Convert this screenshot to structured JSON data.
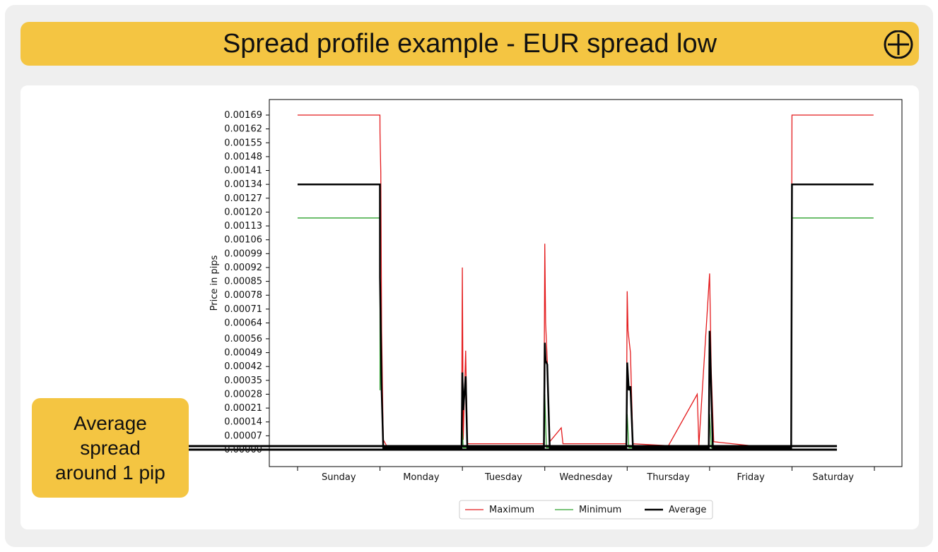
{
  "header": {
    "title": "Spread profile example - EUR spread low",
    "expand_icon": "circle-plus-icon"
  },
  "callout": {
    "text": "Average\nspread\naround 1 pip"
  },
  "colors": {
    "accent": "#f4c542",
    "maximum": "#e41a1c",
    "minimum": "#2ca02c",
    "average": "#000000"
  },
  "chart_data": {
    "type": "line",
    "ylabel": "Price in pips",
    "xlabel": "",
    "categories": [
      "Sunday",
      "Monday",
      "Tuesday",
      "Wednesday",
      "Thursday",
      "Friday",
      "Saturday"
    ],
    "yticks": [
      "0.00000",
      "0.00007",
      "0.00014",
      "0.00021",
      "0.00028",
      "0.00035",
      "0.00042",
      "0.00049",
      "0.00056",
      "0.00064",
      "0.00071",
      "0.00078",
      "0.00085",
      "0.00092",
      "0.00099",
      "0.00106",
      "0.00113",
      "0.00120",
      "0.00127",
      "0.00134",
      "0.00141",
      "0.00148",
      "0.00155",
      "0.00162",
      "0.00169"
    ],
    "ylim": [
      -1e-05,
      0.00177
    ],
    "xlim": [
      -0.35,
      7.0
    ],
    "legend": {
      "position": "bottom-center",
      "entries": [
        "Maximum",
        "Minimum",
        "Average"
      ]
    },
    "grid": false,
    "series": [
      {
        "name": "Maximum",
        "color": "#e41a1c",
        "points": [
          [
            0.0,
            0.00169
          ],
          [
            0.999,
            0.00169
          ],
          [
            1.0,
            0.0016
          ],
          [
            1.01,
            0.0014
          ],
          [
            1.02,
            0.0006
          ],
          [
            1.04,
            5e-05
          ],
          [
            1.08,
            2e-05
          ],
          [
            1.5,
            2e-05
          ],
          [
            1.99,
            2e-05
          ],
          [
            2.0,
            0.00092
          ],
          [
            2.01,
            5e-05
          ],
          [
            2.04,
            0.0005
          ],
          [
            2.06,
            3e-05
          ],
          [
            2.5,
            3e-05
          ],
          [
            2.99,
            3e-05
          ],
          [
            3.0,
            0.00104
          ],
          [
            3.01,
            0.00064
          ],
          [
            3.03,
            0.00045
          ],
          [
            3.06,
            4e-05
          ],
          [
            3.2,
            0.00011
          ],
          [
            3.22,
            3e-05
          ],
          [
            3.5,
            3e-05
          ],
          [
            3.99,
            3e-05
          ],
          [
            4.0,
            0.0008
          ],
          [
            4.01,
            0.0006
          ],
          [
            4.04,
            0.00049
          ],
          [
            4.07,
            3e-05
          ],
          [
            4.5,
            2e-05
          ],
          [
            4.85,
            0.00028
          ],
          [
            4.87,
            2e-05
          ],
          [
            5.0,
            0.00089
          ],
          [
            5.02,
            0.0004
          ],
          [
            5.05,
            4e-05
          ],
          [
            5.5,
            2e-05
          ],
          [
            5.99,
            2e-05
          ],
          [
            6.0,
            0.00169
          ],
          [
            6.99,
            0.00169
          ]
        ]
      },
      {
        "name": "Minimum",
        "color": "#2ca02c",
        "points": [
          [
            0.0,
            0.00117
          ],
          [
            0.999,
            0.00117
          ],
          [
            1.0,
            0.0003
          ],
          [
            1.01,
            0.0007
          ],
          [
            1.02,
            0.00028
          ],
          [
            1.04,
            1e-05
          ],
          [
            1.5,
            1e-05
          ],
          [
            1.99,
            1e-05
          ],
          [
            2.0,
            0.0001
          ],
          [
            2.01,
            1e-05
          ],
          [
            2.99,
            1e-05
          ],
          [
            3.0,
            0.00028
          ],
          [
            3.02,
            1e-05
          ],
          [
            3.99,
            1e-05
          ],
          [
            4.0,
            0.00018
          ],
          [
            4.02,
            1e-05
          ],
          [
            4.99,
            1e-05
          ],
          [
            5.0,
            0.00018
          ],
          [
            5.02,
            1e-05
          ],
          [
            5.99,
            1e-05
          ],
          [
            6.0,
            0.00117
          ],
          [
            6.99,
            0.00117
          ]
        ]
      },
      {
        "name": "Average",
        "color": "#000000",
        "points": [
          [
            0.0,
            0.00134
          ],
          [
            0.999,
            0.00134
          ],
          [
            1.0,
            0.00087
          ],
          [
            1.01,
            0.0006
          ],
          [
            1.02,
            0.0003
          ],
          [
            1.04,
            1e-05
          ],
          [
            1.99,
            1e-05
          ],
          [
            2.0,
            0.00039
          ],
          [
            2.01,
            0.0002
          ],
          [
            2.04,
            0.00037
          ],
          [
            2.06,
            1e-05
          ],
          [
            2.99,
            1e-05
          ],
          [
            3.0,
            0.00054
          ],
          [
            3.01,
            0.00045
          ],
          [
            3.03,
            0.00043
          ],
          [
            3.06,
            1e-05
          ],
          [
            3.99,
            1e-05
          ],
          [
            4.0,
            0.00044
          ],
          [
            4.02,
            0.0003
          ],
          [
            4.04,
            0.00032
          ],
          [
            4.07,
            1e-05
          ],
          [
            4.99,
            1e-05
          ],
          [
            5.0,
            0.0006
          ],
          [
            5.02,
            0.0003
          ],
          [
            5.04,
            1e-05
          ],
          [
            5.99,
            1e-05
          ],
          [
            6.0,
            0.00134
          ],
          [
            6.99,
            0.00134
          ]
        ]
      }
    ],
    "annotation": {
      "type": "horizontal-band",
      "y_values": [
        2e-05,
        0.0
      ]
    }
  }
}
